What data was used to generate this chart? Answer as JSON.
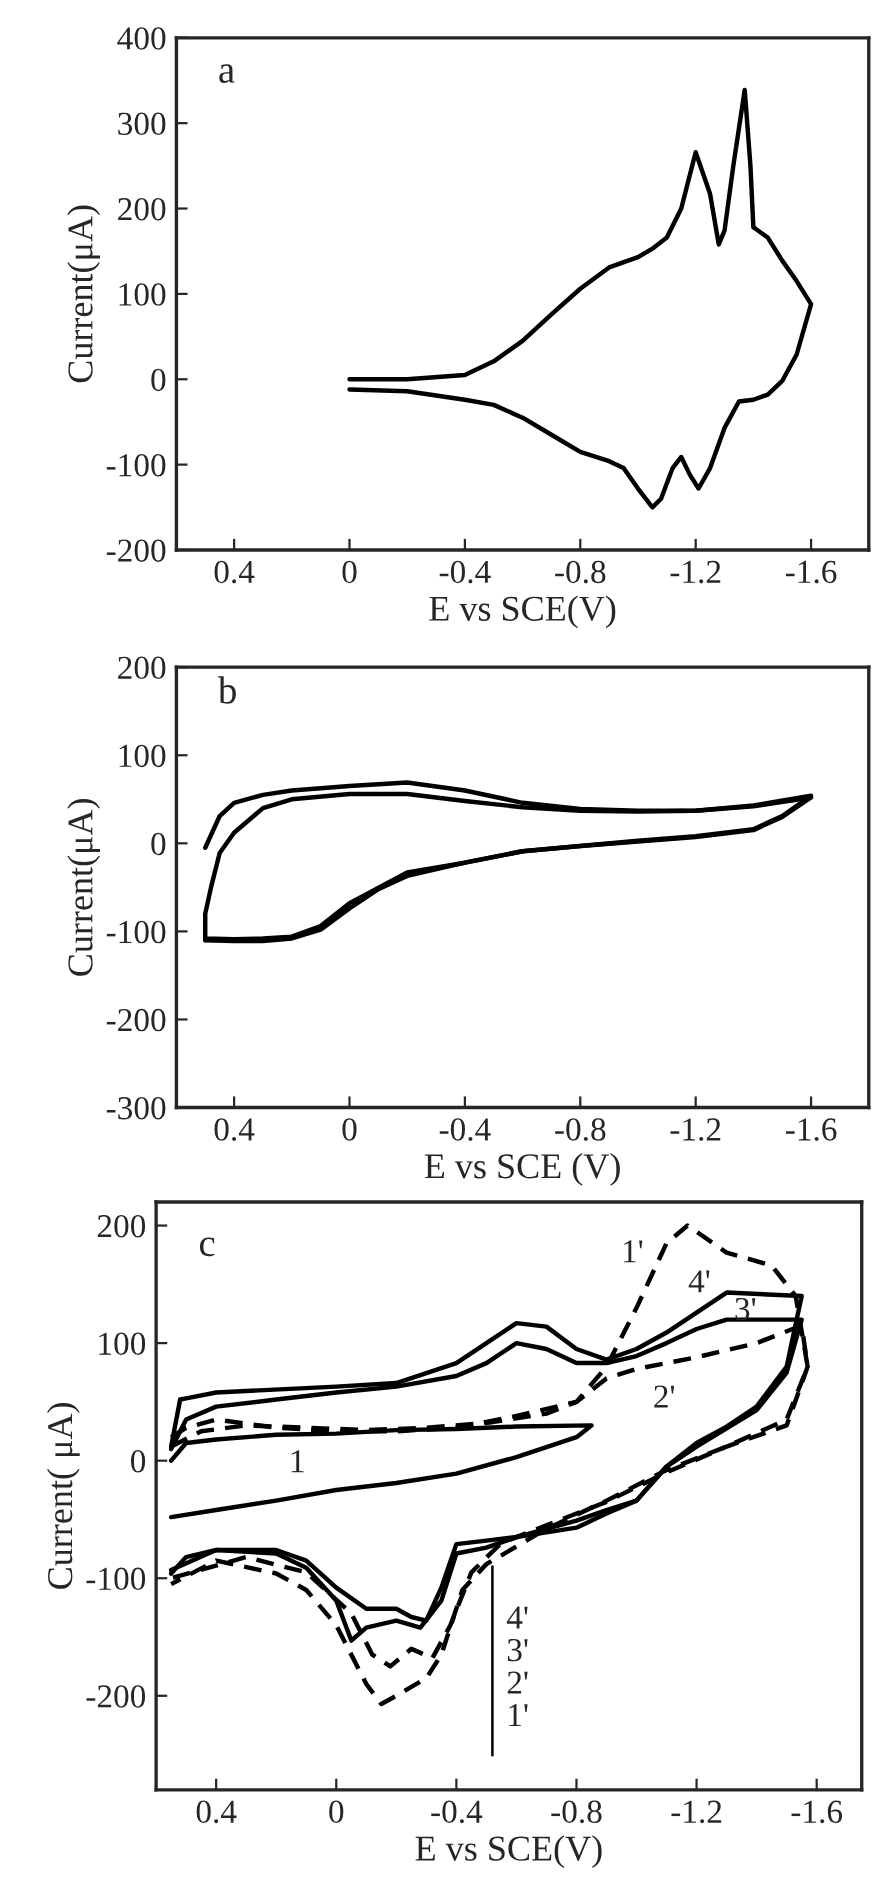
{
  "chart_data": [
    {
      "type": "line",
      "title": "a",
      "xlabel": "E vs SCE(V)",
      "ylabel": "Current(μA)",
      "xlim": [
        0.6,
        -1.8
      ],
      "ylim": [
        -200,
        400
      ],
      "xticks": [
        0.4,
        0,
        -0.4,
        -0.8,
        -1.2,
        -1.6
      ],
      "yticks": [
        -200,
        -100,
        0,
        100,
        200,
        300,
        400
      ],
      "grid": false,
      "legend": false,
      "series": [
        {
          "color": "#000000",
          "line_style": "solid",
          "x": [
            0,
            -0.2,
            -0.4,
            -0.5,
            -0.6,
            -0.7,
            -0.8,
            -0.9,
            -1.0,
            -1.05,
            -1.1,
            -1.15,
            -1.2,
            -1.25,
            -1.28,
            -1.3,
            -1.33,
            -1.37,
            -1.39,
            -1.4,
            -1.45,
            -1.5,
            -1.55,
            -1.6,
            -1.55,
            -1.5,
            -1.45,
            -1.4,
            -1.35,
            -1.3,
            -1.25,
            -1.21,
            -1.18,
            -1.15,
            -1.12,
            -1.08,
            -1.05,
            -1.0,
            -0.95,
            -0.9,
            -0.8,
            -0.7,
            -0.6,
            -0.5,
            -0.4,
            -0.2,
            0
          ],
          "values": [
            0,
            0,
            5,
            21,
            45,
            76,
            106,
            131,
            143,
            153,
            166,
            200,
            266,
            217,
            158,
            174,
            249,
            339,
            249,
            178,
            166,
            139,
            115,
            88,
            29,
            -2,
            -18,
            -24,
            -26,
            -57,
            -104,
            -128,
            -112,
            -91,
            -104,
            -140,
            -150,
            -128,
            -104,
            -96,
            -85,
            -65,
            -45,
            -30,
            -24,
            -14,
            -12
          ]
        }
      ]
    },
    {
      "type": "line",
      "title": "b",
      "xlabel": "E vs SCE (V)",
      "ylabel": "Current(μA)",
      "xlim": [
        0.6,
        -1.8
      ],
      "ylim": [
        -300,
        200
      ],
      "xticks": [
        0.4,
        0,
        -0.4,
        -0.8,
        -1.2,
        -1.6
      ],
      "yticks": [
        -300,
        -200,
        -100,
        0,
        100,
        200
      ],
      "grid": false,
      "legend": false,
      "series": [
        {
          "color": "#000000",
          "line_style": "solid",
          "x": [
            0.5,
            0.45,
            0.4,
            0.3,
            0.2,
            0,
            -0.2,
            -0.4,
            -0.6,
            -0.8,
            -1.0,
            -1.2,
            -1.4,
            -1.6,
            -1.5,
            -1.4,
            -1.2,
            -1.0,
            -0.8,
            -0.6,
            -0.4,
            -0.2,
            -0.1,
            0,
            0.1,
            0.2,
            0.3,
            0.4,
            0.5
          ],
          "values": [
            -5,
            31,
            46,
            55,
            60,
            65,
            69,
            60,
            46,
            39,
            37,
            37,
            43,
            54,
            31,
            16,
            8,
            3,
            -3,
            -9,
            -22,
            -37,
            -52,
            -74,
            -98,
            -108,
            -111,
            -111,
            -110
          ]
        },
        {
          "color": "#000000",
          "line_style": "solid",
          "x": [
            0.5,
            0.5,
            0.48,
            0.45,
            0.4,
            0.3,
            0.2,
            0,
            -0.2,
            -0.4,
            -0.6,
            -0.8,
            -1.0,
            -1.2,
            -1.4,
            -1.6,
            -1.5,
            -1.4,
            -1.2,
            -1.0,
            -0.8,
            -0.6,
            -0.4,
            -0.2,
            0,
            0.1,
            0.2,
            0.3,
            0.4,
            0.5
          ],
          "values": [
            -110,
            -80,
            -50,
            -11,
            12,
            40,
            50,
            56,
            56,
            48,
            41,
            37,
            36,
            37,
            42,
            52,
            30,
            15,
            7,
            2,
            -3,
            -9,
            -22,
            -33,
            -68,
            -94,
            -106,
            -108,
            -109,
            -108
          ]
        }
      ]
    },
    {
      "type": "line",
      "title": "c",
      "xlabel": "E vs SCE(V)",
      "ylabel": "Current( μA)",
      "xlim": [
        0.6,
        -1.75
      ],
      "ylim": [
        -280,
        220
      ],
      "xticks": [
        0.4,
        0,
        -0.4,
        -0.8,
        -1.2,
        -1.6
      ],
      "yticks": [
        -200,
        -100,
        0,
        100,
        200
      ],
      "grid": false,
      "legend": false,
      "annotations": [
        "1",
        "1'",
        "4'",
        "3'",
        "2'",
        {
          "text": "4'\n3'\n2'\n1'",
          "x": -0.52,
          "y": -90
        }
      ],
      "series": [
        {
          "color": "#000000",
          "line_style": "solid",
          "x": [
            0.55,
            0.5,
            0.4,
            0.2,
            0,
            -0.2,
            -0.4,
            -0.6,
            -0.85,
            -0.8,
            -0.6,
            -0.4,
            -0.2,
            0,
            0.2,
            0.4,
            0.55
          ],
          "values": [
            0,
            15,
            18,
            22,
            23,
            26,
            27,
            29,
            30,
            20,
            3,
            -11,
            -19,
            -25,
            -34,
            -42,
            -48
          ]
        },
        {
          "color": "#000000",
          "line_style": "dashed",
          "x": [
            0.55,
            0.45,
            0.3,
            0.1,
            -0.1,
            -0.3,
            -0.5,
            -0.7,
            -0.8,
            -0.9,
            -1.0,
            -1.1,
            -1.17,
            -1.3,
            -1.45,
            -1.53,
            -1.57,
            -1.5,
            -1.3,
            -1.1,
            -0.9,
            -0.7,
            -0.5,
            -0.42,
            -0.35,
            -0.3,
            -0.2,
            -0.15,
            -0.1,
            0,
            0.1,
            0.2,
            0.4,
            0.55
          ],
          "values": [
            12,
            25,
            30,
            28,
            26,
            28,
            32,
            40,
            50,
            80,
            130,
            185,
            200,
            177,
            166,
            140,
            80,
            35,
            12,
            -8,
            -34,
            -58,
            -88,
            -110,
            -165,
            -185,
            -200,
            -207,
            -190,
            -140,
            -110,
            -96,
            -85,
            -105
          ]
        },
        {
          "color": "#000000",
          "line_style": "dashed",
          "x": [
            0.55,
            0.5,
            0.4,
            0.2,
            0,
            -0.2,
            -0.4,
            -0.6,
            -0.8,
            -0.9,
            -1.0,
            -1.2,
            -1.4,
            -1.55,
            -1.57,
            -1.5,
            -1.3,
            -1.1,
            -0.9,
            -0.7,
            -0.55,
            -0.45,
            -0.38,
            -0.32,
            -0.25,
            -0.18,
            -0.12,
            -0.05,
            0.1,
            0.3,
            0.55
          ],
          "values": [
            20,
            28,
            35,
            28,
            25,
            25,
            28,
            38,
            50,
            70,
            78,
            88,
            100,
            115,
            80,
            30,
            12,
            -10,
            -35,
            -55,
            -70,
            -95,
            -140,
            -168,
            -160,
            -175,
            -165,
            -130,
            -95,
            -82,
            -100
          ]
        },
        {
          "color": "#000000",
          "line_style": "solid",
          "x": [
            0.55,
            0.5,
            0.4,
            0.2,
            0,
            -0.2,
            -0.4,
            -0.5,
            -0.6,
            -0.7,
            -0.8,
            -0.9,
            -1.0,
            -1.1,
            -1.2,
            -1.3,
            -1.55,
            -1.55,
            -1.5,
            -1.4,
            -1.2,
            -1.1,
            -1.0,
            -0.9,
            -0.8,
            -0.6,
            -0.5,
            -0.4,
            -0.35,
            -0.28,
            -0.2,
            -0.1,
            -0.05,
            0,
            0.1,
            0.2,
            0.4,
            0.55
          ],
          "values": [
            10,
            35,
            46,
            52,
            58,
            63,
            72,
            83,
            100,
            95,
            83,
            83,
            89,
            100,
            112,
            120,
            120,
            120,
            75,
            43,
            12,
            -5,
            -34,
            -45,
            -57,
            -65,
            -74,
            -79,
            -119,
            -142,
            -136,
            -142,
            -153,
            -119,
            -91,
            -79,
            -76,
            -93
          ]
        },
        {
          "color": "#000000",
          "line_style": "solid",
          "x": [
            0.55,
            0.52,
            0.5,
            0.4,
            0,
            -0.2,
            -0.4,
            -0.5,
            -0.6,
            -0.7,
            -0.8,
            -0.9,
            -1.0,
            -1.1,
            -1.2,
            -1.3,
            -1.55,
            -1.55,
            -1.5,
            -1.4,
            -1.3,
            -1.2,
            -1.1,
            -1.0,
            -0.9,
            -0.8,
            -0.6,
            -0.5,
            -0.4,
            -0.35,
            -0.3,
            -0.25,
            -0.2,
            -0.1,
            0,
            0.1,
            0.2,
            0.4,
            0.5,
            0.55
          ],
          "values": [
            12,
            52,
            53,
            58,
            63,
            66,
            83,
            100,
            117,
            114,
            95,
            86,
            95,
            109,
            126,
            143,
            140,
            140,
            80,
            46,
            29,
            15,
            -5,
            -34,
            -42,
            -51,
            -65,
            -68,
            -71,
            -108,
            -136,
            -133,
            -126,
            -126,
            -108,
            -85,
            -76,
            -76,
            -82,
            -96
          ]
        }
      ]
    }
  ]
}
